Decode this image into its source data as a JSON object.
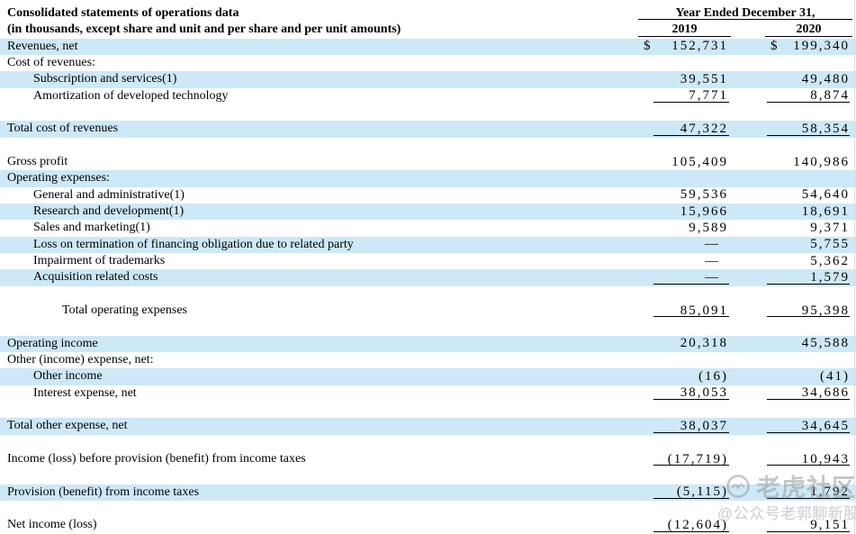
{
  "title": {
    "line1": "Consolidated statements of operations data",
    "line2": "(in thousands, except share and unit and per share and per unit amounts)"
  },
  "columns": {
    "group_header": "Year Ended December 31,",
    "years": [
      "2019",
      "2020"
    ]
  },
  "currency_symbol": "$",
  "rows": [
    {
      "label": "Revenues, net",
      "indent": 0,
      "highlight": true,
      "dollar": true,
      "v2019": "152,731",
      "v2020": "199,340"
    },
    {
      "label": "Cost of revenues:",
      "indent": 0,
      "highlight": false
    },
    {
      "label": "Subscription and services(1)",
      "indent": 1,
      "highlight": true,
      "v2019": "39,551",
      "v2020": "49,480"
    },
    {
      "label": "Amortization of developed technology",
      "indent": 1,
      "highlight": false,
      "v2019": "7,771",
      "v2020": "8,874",
      "rule": true
    },
    {
      "blank": true
    },
    {
      "label": "Total cost of revenues",
      "indent": 0,
      "highlight": true,
      "v2019": "47,322",
      "v2020": "58,354",
      "rule": true
    },
    {
      "blank": true
    },
    {
      "label": "Gross profit",
      "indent": 0,
      "highlight": false,
      "v2019": "105,409",
      "v2020": "140,986"
    },
    {
      "label": "Operating expenses:",
      "indent": 0,
      "highlight": true
    },
    {
      "label": "General and administrative(1)",
      "indent": 1,
      "highlight": false,
      "v2019": "59,536",
      "v2020": "54,640"
    },
    {
      "label": "Research and development(1)",
      "indent": 1,
      "highlight": true,
      "v2019": "15,966",
      "v2020": "18,691"
    },
    {
      "label": "Sales and marketing(1)",
      "indent": 1,
      "highlight": false,
      "v2019": "9,589",
      "v2020": "9,371"
    },
    {
      "label": "Loss on termination of financing obligation due to related party",
      "indent": 1,
      "highlight": true,
      "v2019": "—",
      "v2020": "5,755"
    },
    {
      "label": "Impairment of trademarks",
      "indent": 1,
      "highlight": false,
      "v2019": "—",
      "v2020": "5,362"
    },
    {
      "label": "Acquisition related costs",
      "indent": 1,
      "highlight": true,
      "v2019": "—",
      "v2020": "1,579",
      "rule": true
    },
    {
      "blank": true
    },
    {
      "label": "Total operating expenses",
      "indent": 2,
      "highlight": false,
      "v2019": "85,091",
      "v2020": "95,398",
      "rule": true
    },
    {
      "blank": true
    },
    {
      "label": "Operating income",
      "indent": 0,
      "highlight": true,
      "v2019": "20,318",
      "v2020": "45,588"
    },
    {
      "label": "Other (income) expense, net:",
      "indent": 0,
      "highlight": false
    },
    {
      "label": "Other income",
      "indent": 1,
      "highlight": true,
      "v2019": "(16)",
      "v2020": "(41)"
    },
    {
      "label": "Interest expense, net",
      "indent": 1,
      "highlight": false,
      "v2019": "38,053",
      "v2020": "34,686",
      "rule": true
    },
    {
      "blank": true
    },
    {
      "label": "Total other expense, net",
      "indent": 0,
      "highlight": true,
      "v2019": "38,037",
      "v2020": "34,645",
      "rule": true
    },
    {
      "blank": true
    },
    {
      "label": "Income (loss) before provision (benefit) from income taxes",
      "indent": 0,
      "highlight": false,
      "v2019": "(17,719)",
      "v2020": "10,943",
      "rule": true
    },
    {
      "blank": true
    },
    {
      "label": "Provision (benefit) from income taxes",
      "indent": 0,
      "highlight": true,
      "v2019": "(5,115)",
      "v2020": "1,792",
      "rule": true
    },
    {
      "blank": true
    },
    {
      "label": "Net income (loss)",
      "indent": 0,
      "highlight": false,
      "v2019": "(12,604)",
      "v2020": "9,151",
      "rule": true
    }
  ],
  "watermark": {
    "brand": "老虎社区",
    "handle": "@公众号老郭聊新股"
  },
  "colors": {
    "highlight": "#cde8f7",
    "rule": "#000000",
    "watermark_gray": "#969CA2"
  }
}
